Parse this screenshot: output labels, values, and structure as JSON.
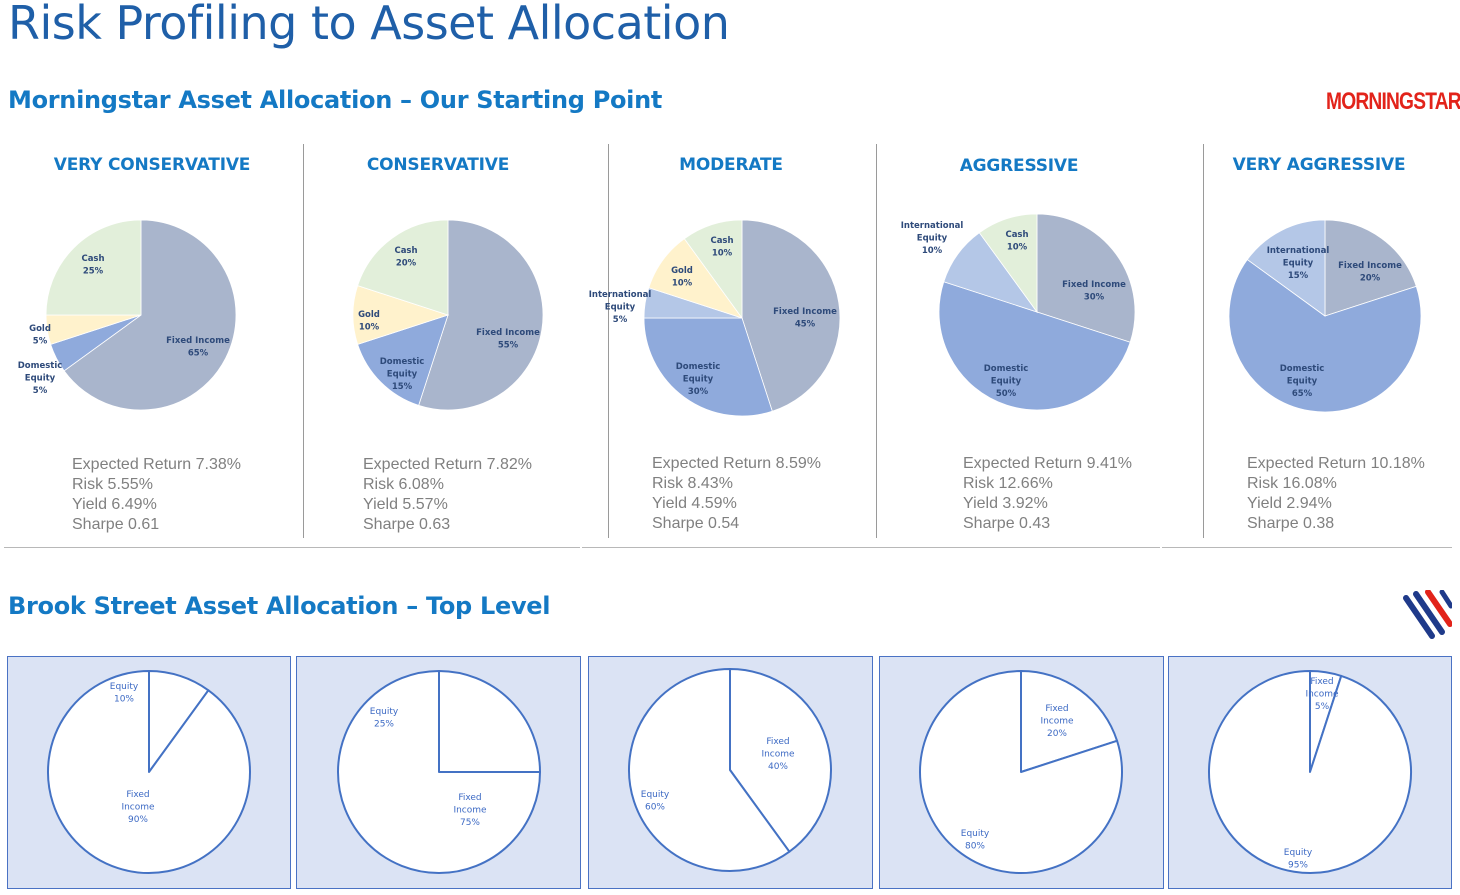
{
  "page": {
    "title": "Risk Profiling to Asset Allocation",
    "morningstar_section_title": "Morningstar Asset Allocation – Our Starting Point",
    "brookstreet_section_title": "Brook Street Asset Allocation – Top Level",
    "morningstar_logo_text": "MORNINGSTAR",
    "brookstreet_logo": "brook-street-stripes-logo"
  },
  "colors": {
    "title": "#1f5fa8",
    "section": "#1479c4",
    "fixed_income": "#a9b5cc",
    "domestic_equity": "#8faadc",
    "international_equity": "#b4c7e7",
    "gold": "#fff2cc",
    "cash": "#e2efda",
    "brook_panel": "#dbe3f4",
    "brook_line": "#4472c4"
  },
  "profiles": [
    {
      "name": "VERY CONSERVATIVE",
      "stats": [
        "Expected Return 7.38%",
        "Risk 5.55%",
        "Yield 6.49%",
        "Sharpe 0.61"
      ],
      "slices": [
        {
          "name": "Fixed Income",
          "value": 65,
          "pct": "65%"
        },
        {
          "name": "Domestic Equity",
          "value": 5,
          "pct": "5%"
        },
        {
          "name": "Gold",
          "value": 5,
          "pct": "5%"
        },
        {
          "name": "Cash",
          "value": 25,
          "pct": "25%"
        }
      ]
    },
    {
      "name": "CONSERVATIVE",
      "stats": [
        "Expected Return 7.82%",
        "Risk 6.08%",
        "Yield 5.57%",
        "Sharpe 0.63"
      ],
      "slices": [
        {
          "name": "Fixed Income",
          "value": 55,
          "pct": "55%"
        },
        {
          "name": "Domestic Equity",
          "value": 15,
          "pct": "15%"
        },
        {
          "name": "Gold",
          "value": 10,
          "pct": "10%"
        },
        {
          "name": "Cash",
          "value": 20,
          "pct": "20%"
        }
      ]
    },
    {
      "name": "MODERATE",
      "stats": [
        "Expected Return 8.59%",
        "Risk 8.43%",
        "Yield 4.59%",
        "Sharpe 0.54"
      ],
      "slices": [
        {
          "name": "Fixed Income",
          "value": 45,
          "pct": "45%"
        },
        {
          "name": "Domestic Equity",
          "value": 30,
          "pct": "30%"
        },
        {
          "name": "International Equity",
          "value": 5,
          "pct": "5%"
        },
        {
          "name": "Gold",
          "value": 10,
          "pct": "10%"
        },
        {
          "name": "Cash",
          "value": 10,
          "pct": "10%"
        }
      ]
    },
    {
      "name": "AGGRESSIVE",
      "stats": [
        "Expected Return 9.41%",
        "Risk 12.66%",
        "Yield 3.92%",
        "Sharpe 0.43"
      ],
      "slices": [
        {
          "name": "Fixed Income",
          "value": 30,
          "pct": "30%"
        },
        {
          "name": "Domestic Equity",
          "value": 50,
          "pct": "50%"
        },
        {
          "name": "International Equity",
          "value": 10,
          "pct": "10%"
        },
        {
          "name": "Cash",
          "value": 10,
          "pct": "10%"
        }
      ]
    },
    {
      "name": "VERY AGGRESSIVE",
      "stats": [
        "Expected Return 10.18%",
        "Risk 16.08%",
        "Yield 2.94%",
        "Sharpe 0.38"
      ],
      "slices": [
        {
          "name": "Fixed Income",
          "value": 20,
          "pct": "20%"
        },
        {
          "name": "Domestic Equity",
          "value": 65,
          "pct": "65%"
        },
        {
          "name": "International Equity",
          "value": 15,
          "pct": "15%"
        }
      ]
    }
  ],
  "brookstreet": [
    {
      "slices": [
        {
          "name": "Equity",
          "value": 10,
          "pct": "10%"
        },
        {
          "name": "Fixed Income",
          "value": 90,
          "pct": "90%"
        }
      ]
    },
    {
      "slices": [
        {
          "name": "Equity",
          "value": 25,
          "pct": "25%"
        },
        {
          "name": "Fixed Income",
          "value": 75,
          "pct": "75%"
        }
      ]
    },
    {
      "slices": [
        {
          "name": "Fixed Income",
          "value": 40,
          "pct": "40%"
        },
        {
          "name": "Equity",
          "value": 60,
          "pct": "60%"
        }
      ]
    },
    {
      "slices": [
        {
          "name": "Fixed Income",
          "value": 20,
          "pct": "20%"
        },
        {
          "name": "Equity",
          "value": 80,
          "pct": "80%"
        }
      ]
    },
    {
      "slices": [
        {
          "name": "Fixed Income",
          "value": 5,
          "pct": "5%"
        },
        {
          "name": "Equity",
          "value": 95,
          "pct": "95%"
        }
      ]
    }
  ]
}
